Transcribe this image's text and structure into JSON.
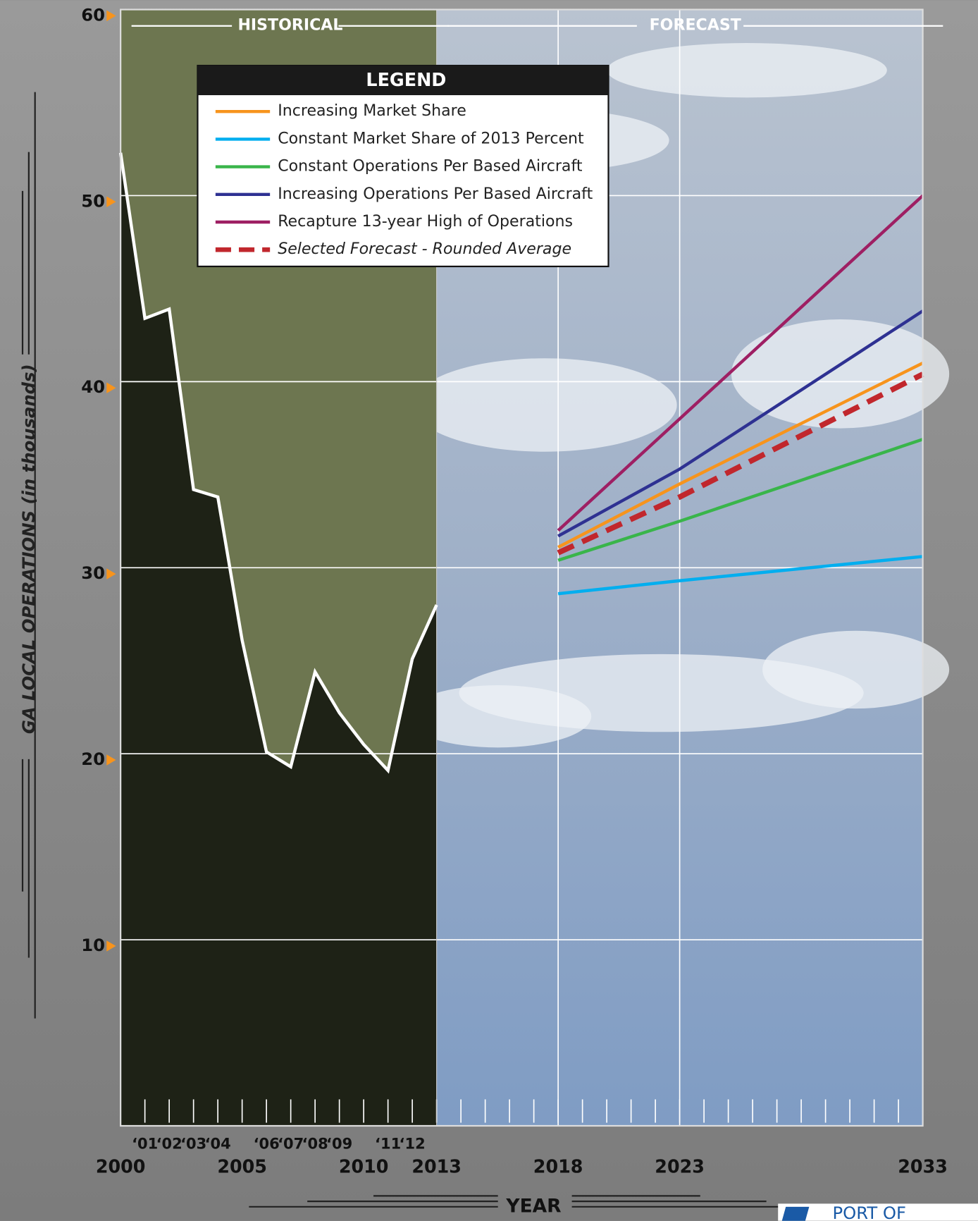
{
  "chart_data": {
    "type": "line",
    "y_axis_label": "GA LOCAL OPERATIONS (in thousands)",
    "x_axis_label": "YEAR",
    "historical_label": "HISTORICAL",
    "forecast_label": "FORECAST",
    "legend_title": "LEGEND",
    "logo": "PORT OF",
    "xlim": [
      2000,
      2033
    ],
    "ylim": [
      0,
      60
    ],
    "yticks": [
      10,
      20,
      30,
      40,
      50,
      60
    ],
    "xticks": [
      2000,
      2005,
      2010,
      2013,
      2018,
      2023,
      2033
    ],
    "minor_xticks": [
      {
        "value": 2001,
        "label": "‘01"
      },
      {
        "value": 2002,
        "label": "‘02"
      },
      {
        "value": 2003,
        "label": "‘03"
      },
      {
        "value": 2004,
        "label": "‘04"
      },
      {
        "value": 2006,
        "label": "‘06"
      },
      {
        "value": 2007,
        "label": "‘07"
      },
      {
        "value": 2008,
        "label": "‘08"
      },
      {
        "value": 2009,
        "label": "‘09"
      },
      {
        "value": 2011,
        "label": "‘11"
      },
      {
        "value": 2012,
        "label": "‘12"
      }
    ],
    "grid": true,
    "series": [
      {
        "color": "#ffffff",
        "x": [
          2000,
          2001,
          2002,
          2003,
          2004,
          2005,
          2006,
          2007,
          2008,
          2009,
          2010,
          2011,
          2012,
          2013
        ],
        "values": [
          52.3,
          43.4,
          43.9,
          34.2,
          33.8,
          26.1,
          20.1,
          19.3,
          24.4,
          22.2,
          20.5,
          19.1,
          25.1,
          28.0
        ]
      },
      {
        "name": "Increasing Market Share",
        "color": "#f7941d",
        "x": [
          2018,
          2023,
          2033
        ],
        "values": [
          31.1,
          34.5,
          41.0
        ]
      },
      {
        "name": "Constant Market Share of 2013 Percent",
        "color": "#00aeef",
        "x": [
          2018,
          2023,
          2033
        ],
        "values": [
          28.6,
          29.3,
          30.6
        ]
      },
      {
        "name": "Constant Operations Per Based Aircraft",
        "color": "#39b54a",
        "x": [
          2018,
          2023,
          2033
        ],
        "values": [
          30.4,
          32.5,
          36.9
        ]
      },
      {
        "name": "Increasing Operations Per Based Aircraft",
        "color": "#2e3192",
        "x": [
          2018,
          2023,
          2033
        ],
        "values": [
          31.7,
          35.3,
          43.8
        ]
      },
      {
        "name": "Recapture 13-year High of Operations",
        "color": "#9e1f63",
        "x": [
          2018,
          2023,
          2033
        ],
        "values": [
          32.0,
          38.0,
          50.0
        ]
      },
      {
        "name": "Selected Forecast - Rounded Average",
        "color": "#c1272d",
        "dashed": true,
        "x": [
          2018,
          2023,
          2033
        ],
        "values": [
          30.8,
          33.8,
          40.4
        ]
      }
    ]
  }
}
